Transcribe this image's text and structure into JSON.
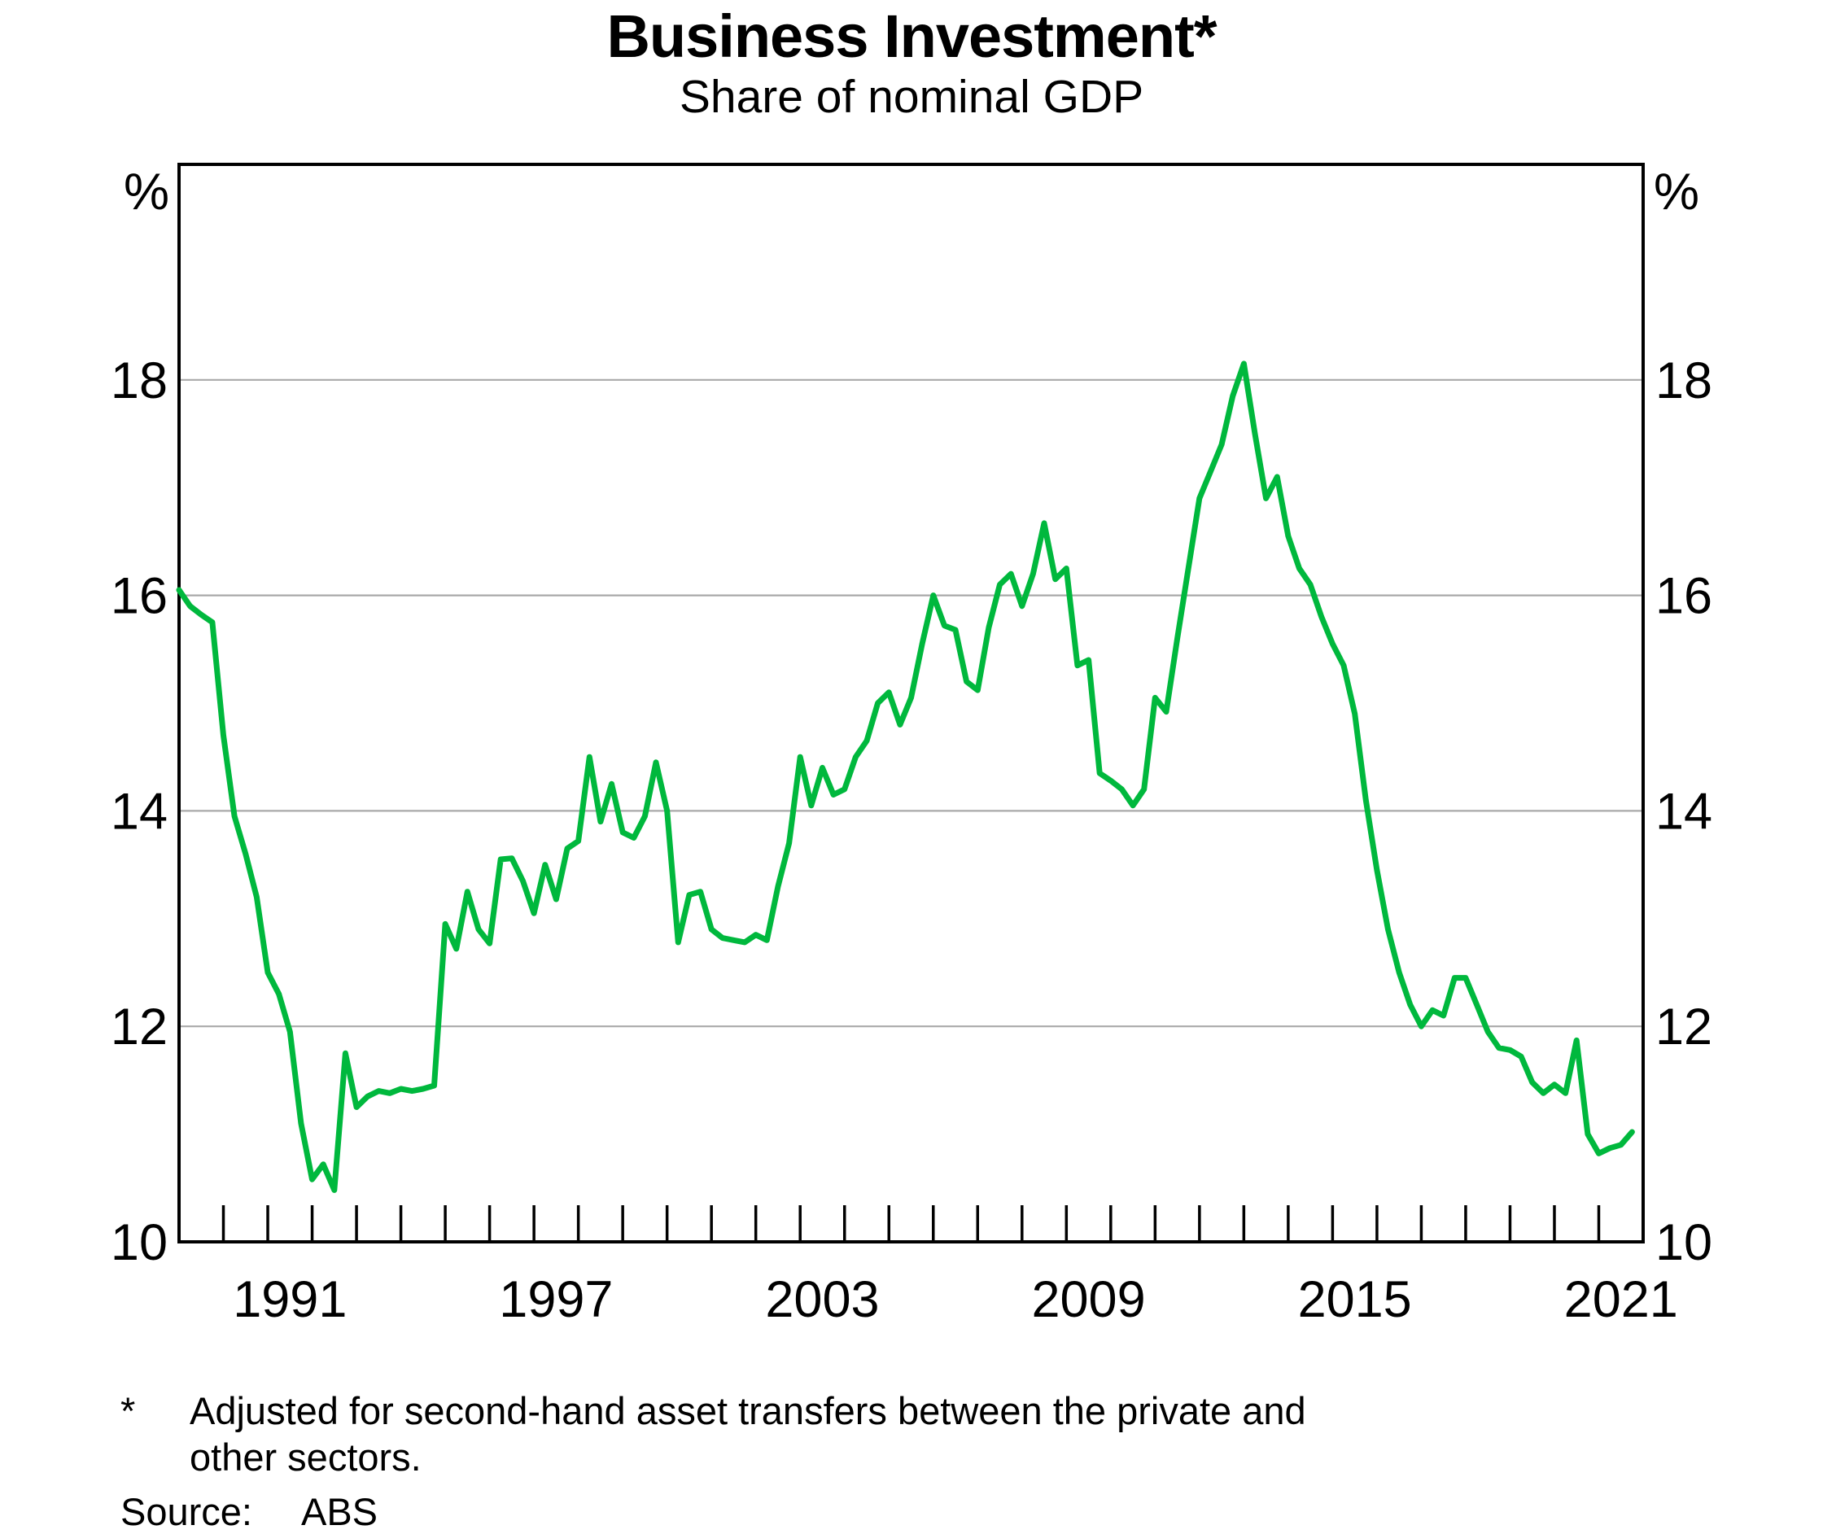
{
  "title": "Business Investment*",
  "subtitle": "Share of nominal GDP",
  "unit_label_left": "%",
  "unit_label_right": "%",
  "footnote_marker": "*",
  "footnote_lines": [
    "Adjusted for second-hand asset transfers between the private and",
    "other sectors."
  ],
  "source_label": "Source:",
  "source_value": "ABS",
  "colors": {
    "line": "#00b83d",
    "grid": "#a9a9a9",
    "axis": "#000000",
    "background": "#ffffff",
    "text": "#000000"
  },
  "chart_data": {
    "type": "line",
    "title": "Business Investment*",
    "subtitle": "Share of nominal GDP",
    "xlabel": "",
    "ylabel": "%",
    "units": "% of nominal GDP",
    "frequency": "quarterly",
    "grid": "horizontal",
    "legend": "none",
    "xlim": [
      1988.5,
      2021.5
    ],
    "ylim": [
      10,
      20
    ],
    "yticks": [
      10,
      12,
      14,
      16,
      18
    ],
    "gridlines": [
      12,
      14,
      16,
      18
    ],
    "xticklabels": [
      1991,
      1997,
      2003,
      2009,
      2015,
      2021
    ],
    "minor_tick_start": 1989.5,
    "minor_tick_end": 2020.5,
    "minor_tick_step": 1,
    "series": [
      {
        "name": "Business investment share of nominal GDP",
        "points": [
          [
            1988.5,
            16.05
          ],
          [
            1988.75,
            15.9
          ],
          [
            1989.0,
            15.82
          ],
          [
            1989.25,
            15.75
          ],
          [
            1989.5,
            14.7
          ],
          [
            1989.75,
            13.95
          ],
          [
            1990.0,
            13.6
          ],
          [
            1990.25,
            13.2
          ],
          [
            1990.5,
            12.5
          ],
          [
            1990.75,
            12.3
          ],
          [
            1991.0,
            11.95
          ],
          [
            1991.25,
            11.1
          ],
          [
            1991.5,
            10.58
          ],
          [
            1991.75,
            10.72
          ],
          [
            1992.0,
            10.48
          ],
          [
            1992.25,
            11.75
          ],
          [
            1992.5,
            11.25
          ],
          [
            1992.75,
            11.35
          ],
          [
            1993.0,
            11.4
          ],
          [
            1993.25,
            11.38
          ],
          [
            1993.5,
            11.42
          ],
          [
            1993.75,
            11.4
          ],
          [
            1994.0,
            11.42
          ],
          [
            1994.25,
            11.45
          ],
          [
            1994.5,
            12.95
          ],
          [
            1994.75,
            12.72
          ],
          [
            1995.0,
            13.25
          ],
          [
            1995.25,
            12.9
          ],
          [
            1995.5,
            12.77
          ],
          [
            1995.75,
            13.55
          ],
          [
            1996.0,
            13.56
          ],
          [
            1996.25,
            13.35
          ],
          [
            1996.5,
            13.05
          ],
          [
            1996.75,
            13.5
          ],
          [
            1997.0,
            13.18
          ],
          [
            1997.25,
            13.65
          ],
          [
            1997.5,
            13.72
          ],
          [
            1997.75,
            14.5
          ],
          [
            1998.0,
            13.9
          ],
          [
            1998.25,
            14.25
          ],
          [
            1998.5,
            13.8
          ],
          [
            1998.75,
            13.75
          ],
          [
            1999.0,
            13.95
          ],
          [
            1999.25,
            14.45
          ],
          [
            1999.5,
            14.0
          ],
          [
            1999.75,
            12.78
          ],
          [
            2000.0,
            13.22
          ],
          [
            2000.25,
            13.25
          ],
          [
            2000.5,
            12.9
          ],
          [
            2000.75,
            12.82
          ],
          [
            2001.0,
            12.8
          ],
          [
            2001.25,
            12.78
          ],
          [
            2001.5,
            12.85
          ],
          [
            2001.75,
            12.8
          ],
          [
            2002.0,
            13.3
          ],
          [
            2002.25,
            13.7
          ],
          [
            2002.5,
            14.5
          ],
          [
            2002.75,
            14.05
          ],
          [
            2003.0,
            14.4
          ],
          [
            2003.25,
            14.15
          ],
          [
            2003.5,
            14.2
          ],
          [
            2003.75,
            14.5
          ],
          [
            2004.0,
            14.65
          ],
          [
            2004.25,
            15.0
          ],
          [
            2004.5,
            15.1
          ],
          [
            2004.75,
            14.8
          ],
          [
            2005.0,
            15.05
          ],
          [
            2005.25,
            15.55
          ],
          [
            2005.5,
            16.0
          ],
          [
            2005.75,
            15.72
          ],
          [
            2006.0,
            15.68
          ],
          [
            2006.25,
            15.2
          ],
          [
            2006.5,
            15.12
          ],
          [
            2006.75,
            15.7
          ],
          [
            2007.0,
            16.1
          ],
          [
            2007.25,
            16.2
          ],
          [
            2007.5,
            15.9
          ],
          [
            2007.75,
            16.2
          ],
          [
            2008.0,
            16.67
          ],
          [
            2008.25,
            16.15
          ],
          [
            2008.5,
            16.25
          ],
          [
            2008.75,
            15.35
          ],
          [
            2009.0,
            15.4
          ],
          [
            2009.25,
            14.35
          ],
          [
            2009.5,
            14.28
          ],
          [
            2009.75,
            14.2
          ],
          [
            2010.0,
            14.05
          ],
          [
            2010.25,
            14.2
          ],
          [
            2010.5,
            15.05
          ],
          [
            2010.75,
            14.92
          ],
          [
            2011.0,
            15.6
          ],
          [
            2011.25,
            16.25
          ],
          [
            2011.5,
            16.9
          ],
          [
            2011.75,
            17.15
          ],
          [
            2012.0,
            17.4
          ],
          [
            2012.25,
            17.85
          ],
          [
            2012.5,
            18.15
          ],
          [
            2012.75,
            17.5
          ],
          [
            2013.0,
            16.9
          ],
          [
            2013.25,
            17.1
          ],
          [
            2013.5,
            16.55
          ],
          [
            2013.75,
            16.25
          ],
          [
            2014.0,
            16.1
          ],
          [
            2014.25,
            15.8
          ],
          [
            2014.5,
            15.55
          ],
          [
            2014.75,
            15.35
          ],
          [
            2015.0,
            14.9
          ],
          [
            2015.25,
            14.1
          ],
          [
            2015.5,
            13.45
          ],
          [
            2015.75,
            12.9
          ],
          [
            2016.0,
            12.5
          ],
          [
            2016.25,
            12.2
          ],
          [
            2016.5,
            12.0
          ],
          [
            2016.75,
            12.15
          ],
          [
            2017.0,
            12.1
          ],
          [
            2017.25,
            12.45
          ],
          [
            2017.5,
            12.45
          ],
          [
            2017.75,
            12.2
          ],
          [
            2018.0,
            11.95
          ],
          [
            2018.25,
            11.8
          ],
          [
            2018.5,
            11.78
          ],
          [
            2018.75,
            11.72
          ],
          [
            2019.0,
            11.48
          ],
          [
            2019.25,
            11.38
          ],
          [
            2019.5,
            11.46
          ],
          [
            2019.75,
            11.38
          ],
          [
            2020.0,
            11.87
          ],
          [
            2020.25,
            11.0
          ],
          [
            2020.5,
            10.82
          ],
          [
            2020.75,
            10.87
          ],
          [
            2021.0,
            10.9
          ],
          [
            2021.25,
            11.02
          ]
        ]
      }
    ]
  }
}
